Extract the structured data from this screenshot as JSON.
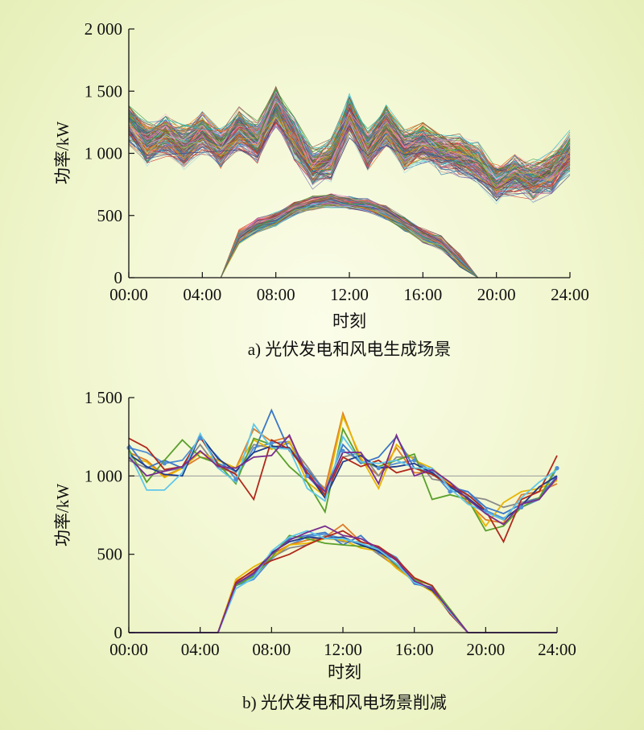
{
  "chart_data": [
    {
      "type": "line",
      "caption": "a) 光伏发电和风电生成场景",
      "xlabel": "时刻",
      "ylabel": "功率/kW",
      "ylim": [
        0,
        2000
      ],
      "xlim": [
        0,
        24
      ],
      "x_ticks": [
        "00:00",
        "04:00",
        "08:00",
        "12:00",
        "16:00",
        "20:00",
        "24:00"
      ],
      "y_ticks": [
        "0",
        "500",
        "1 000",
        "1 500",
        "2 000"
      ],
      "x": [
        0,
        1,
        2,
        3,
        4,
        5,
        6,
        7,
        8,
        9,
        10,
        11,
        12,
        13,
        14,
        15,
        16,
        17,
        18,
        19,
        20,
        21,
        22,
        23,
        24
      ],
      "band_wind": {
        "center": [
          1230,
          1080,
          1150,
          1050,
          1170,
          1040,
          1190,
          1090,
          1380,
          1120,
          880,
          950,
          1300,
          1020,
          1210,
          1010,
          1080,
          1000,
          980,
          920,
          770,
          830,
          780,
          850,
          1000
        ],
        "halfwidth": 140
      },
      "band_pv": {
        "center": [
          0,
          0,
          0,
          0,
          0,
          0,
          330,
          420,
          470,
          550,
          600,
          620,
          600,
          580,
          520,
          430,
          340,
          280,
          140,
          0,
          0,
          0,
          0,
          0,
          0
        ],
        "halfwidth": 45
      },
      "scenario_count": 180
    },
    {
      "type": "line",
      "caption": "b) 光伏发电和风电场景削减",
      "xlabel": "时刻",
      "ylabel": "功率/kW",
      "ylim": [
        0,
        1500
      ],
      "xlim": [
        0,
        24
      ],
      "x_ticks": [
        "00:00",
        "04:00",
        "08:00",
        "12:00",
        "16:00",
        "20:00",
        "24:00"
      ],
      "y_ticks": [
        "0",
        "500",
        "1 000",
        "1 500"
      ],
      "reference_line": 1000,
      "x": [
        0,
        1,
        2,
        3,
        4,
        5,
        6,
        7,
        8,
        9,
        10,
        11,
        12,
        13,
        14,
        15,
        16,
        17,
        18,
        19,
        20,
        21,
        22,
        23,
        24
      ],
      "colors": [
        "#4f8fd6",
        "#e07b2a",
        "#8a8a8a",
        "#e8b400",
        "#3c78c8",
        "#5aa02c",
        "#1f3b8c",
        "#b0281c",
        "#5fc7ea",
        "#7a2d8f"
      ],
      "wind_series": [
        [
          1180,
          1150,
          1080,
          1100,
          1240,
          1120,
          980,
          1180,
          1210,
          1220,
          1000,
          880,
          1160,
          1100,
          1050,
          1080,
          1100,
          1030,
          900,
          900,
          780,
          730,
          800,
          850,
          1050
        ],
        [
          1150,
          1100,
          1000,
          1050,
          1120,
          1100,
          1050,
          1300,
          1220,
          1250,
          1020,
          920,
          1400,
          1100,
          1000,
          1180,
          1020,
          1020,
          950,
          830,
          720,
          700,
          880,
          900,
          950
        ],
        [
          1100,
          1050,
          1030,
          1050,
          1200,
          1050,
          1020,
          1200,
          1180,
          1210,
          1060,
          900,
          1120,
          1150,
          1000,
          1120,
          1120,
          980,
          960,
          870,
          850,
          800,
          830,
          860,
          980
        ],
        [
          1120,
          1090,
          990,
          1050,
          1150,
          1100,
          1050,
          1230,
          1170,
          1220,
          960,
          870,
          1380,
          1120,
          920,
          1200,
          1100,
          1050,
          950,
          850,
          680,
          830,
          900,
          920,
          970
        ],
        [
          1200,
          1050,
          1100,
          1050,
          1250,
          1080,
          1030,
          1150,
          1420,
          1160,
          1040,
          900,
          1200,
          1080,
          1120,
          1250,
          1050,
          1020,
          930,
          900,
          800,
          760,
          820,
          860,
          1000
        ],
        [
          1170,
          960,
          1100,
          1230,
          1120,
          1080,
          950,
          1240,
          1200,
          1060,
          960,
          770,
          1300,
          1090,
          1060,
          1100,
          1140,
          850,
          880,
          850,
          650,
          680,
          800,
          860,
          1060
        ],
        [
          1140,
          1060,
          1010,
          1000,
          1260,
          1110,
          1030,
          1150,
          1190,
          1180,
          1020,
          860,
          1090,
          1130,
          1050,
          1060,
          1080,
          1020,
          930,
          860,
          770,
          720,
          810,
          930,
          1000
        ],
        [
          1240,
          1180,
          1040,
          1060,
          1250,
          1070,
          1010,
          850,
          1230,
          1170,
          1020,
          880,
          1120,
          1060,
          1100,
          1020,
          1050,
          1010,
          940,
          880,
          780,
          580,
          850,
          900,
          1130
        ],
        [
          1150,
          910,
          910,
          1020,
          1270,
          1050,
          960,
          1330,
          1180,
          1170,
          920,
          840,
          1250,
          1090,
          1080,
          1100,
          1050,
          1050,
          920,
          820,
          770,
          720,
          860,
          960,
          1040
        ],
        [
          1120,
          1000,
          1030,
          1060,
          1160,
          1060,
          1050,
          1120,
          1130,
          1260,
          1000,
          900,
          1150,
          1150,
          950,
          1260,
          1000,
          1040,
          960,
          850,
          760,
          690,
          820,
          850,
          990
        ]
      ],
      "pv_series": [
        [
          0,
          0,
          0,
          0,
          0,
          0,
          300,
          340,
          470,
          560,
          610,
          630,
          600,
          560,
          540,
          480,
          330,
          280,
          140,
          0,
          0,
          0,
          0,
          0,
          0
        ],
        [
          0,
          0,
          0,
          0,
          0,
          0,
          330,
          390,
          500,
          560,
          590,
          610,
          690,
          580,
          500,
          420,
          350,
          260,
          150,
          0,
          0,
          0,
          0,
          0,
          0
        ],
        [
          0,
          0,
          0,
          0,
          0,
          0,
          320,
          400,
          480,
          540,
          560,
          620,
          580,
          580,
          500,
          430,
          320,
          270,
          120,
          0,
          0,
          0,
          0,
          0,
          0
        ],
        [
          0,
          0,
          0,
          0,
          0,
          0,
          340,
          420,
          480,
          560,
          570,
          600,
          590,
          540,
          520,
          410,
          330,
          260,
          130,
          0,
          0,
          0,
          0,
          0,
          0
        ],
        [
          0,
          0,
          0,
          0,
          0,
          0,
          300,
          370,
          500,
          600,
          620,
          640,
          560,
          620,
          510,
          470,
          310,
          290,
          140,
          0,
          0,
          0,
          0,
          0,
          0
        ],
        [
          0,
          0,
          0,
          0,
          0,
          0,
          300,
          360,
          480,
          620,
          600,
          570,
          560,
          550,
          540,
          430,
          340,
          300,
          150,
          0,
          0,
          0,
          0,
          0,
          0
        ],
        [
          0,
          0,
          0,
          0,
          0,
          0,
          310,
          380,
          510,
          580,
          610,
          600,
          610,
          560,
          520,
          440,
          330,
          270,
          140,
          0,
          0,
          0,
          0,
          0,
          0
        ],
        [
          0,
          0,
          0,
          0,
          0,
          0,
          320,
          400,
          460,
          500,
          560,
          610,
          650,
          580,
          550,
          470,
          350,
          300,
          120,
          0,
          0,
          0,
          0,
          0,
          0
        ],
        [
          0,
          0,
          0,
          0,
          0,
          0,
          280,
          350,
          520,
          610,
          650,
          600,
          600,
          570,
          530,
          440,
          320,
          280,
          130,
          0,
          0,
          0,
          0,
          0,
          0
        ],
        [
          0,
          0,
          0,
          0,
          0,
          0,
          310,
          380,
          500,
          590,
          640,
          680,
          620,
          600,
          540,
          460,
          330,
          280,
          140,
          0,
          0,
          0,
          0,
          0,
          0
        ]
      ]
    }
  ]
}
